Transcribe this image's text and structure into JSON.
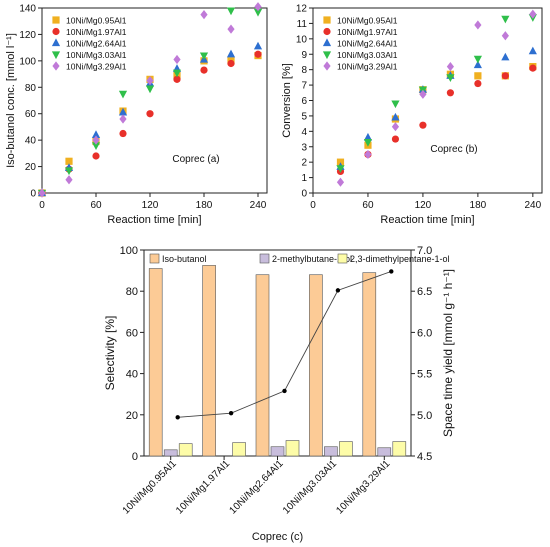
{
  "chart_data": [
    {
      "id": "a",
      "type": "scatter",
      "xlabel": "Reaction time [min]",
      "ylabel": "Iso-butanol conc. [mmol l⁻¹]",
      "annotation": "Coprec (a)",
      "xlim": [
        0,
        250
      ],
      "ylim": [
        0,
        140
      ],
      "xticks": [
        0,
        60,
        120,
        180,
        240
      ],
      "yticks": [
        0,
        20,
        40,
        60,
        80,
        100,
        120,
        140
      ],
      "legend_position": "top-left",
      "x": [
        0,
        30,
        60,
        90,
        120,
        150,
        180,
        210,
        240
      ],
      "series": [
        {
          "name": "10Ni/Mg0.95Al1",
          "marker": "square",
          "color": "#f0b020",
          "values": [
            0,
            24,
            39,
            62,
            86,
            89,
            100,
            100,
            104
          ]
        },
        {
          "name": "10Ni/Mg1.97Al1",
          "marker": "circle",
          "color": "#e8302a",
          "values": [
            0,
            18,
            28,
            45,
            60,
            86,
            93,
            98,
            105
          ]
        },
        {
          "name": "10Ni/Mg2.64Al1",
          "marker": "triangle-up",
          "color": "#2d6fd0",
          "values": [
            0,
            19,
            44,
            61,
            83,
            94,
            101,
            105,
            111
          ]
        },
        {
          "name": "10Ni/Mg3.03Al1",
          "marker": "triangle-down",
          "color": "#2fbf4a",
          "values": [
            0,
            17,
            36,
            75,
            79,
            91,
            104,
            138,
            137
          ]
        },
        {
          "name": "10Ni/Mg3.29Al1",
          "marker": "diamond",
          "color": "#c07ad8",
          "values": [
            0,
            10,
            40,
            56,
            85,
            101,
            135,
            124,
            141
          ]
        }
      ]
    },
    {
      "id": "b",
      "type": "scatter",
      "xlabel": "Reaction time [min]",
      "ylabel": "Conversion [%]",
      "annotation": "Coprec (b)",
      "xlim": [
        0,
        250
      ],
      "ylim": [
        0,
        12
      ],
      "xticks": [
        0,
        60,
        120,
        180,
        240
      ],
      "yticks": [
        0,
        1,
        2,
        3,
        4,
        5,
        6,
        7,
        8,
        9,
        10,
        11,
        12
      ],
      "legend_position": "top-left",
      "x": [
        30,
        60,
        90,
        120,
        150,
        180,
        210,
        240
      ],
      "series": [
        {
          "name": "10Ni/Mg0.95Al1",
          "marker": "square",
          "color": "#f0b020",
          "values": [
            2.0,
            3.1,
            4.8,
            6.7,
            7.7,
            7.6,
            7.6,
            8.2
          ]
        },
        {
          "name": "10Ni/Mg1.97Al1",
          "marker": "circle",
          "color": "#e8302a",
          "values": [
            1.4,
            2.5,
            3.5,
            4.4,
            6.5,
            7.1,
            7.6,
            8.1
          ]
        },
        {
          "name": "10Ni/Mg2.64Al1",
          "marker": "triangle-up",
          "color": "#2d6fd0",
          "values": [
            1.7,
            3.6,
            4.9,
            6.7,
            7.6,
            8.3,
            8.8,
            9.2
          ]
        },
        {
          "name": "10Ni/Mg3.03Al1",
          "marker": "triangle-down",
          "color": "#2fbf4a",
          "values": [
            1.6,
            3.3,
            5.8,
            6.7,
            7.5,
            8.7,
            11.3,
            11.4
          ]
        },
        {
          "name": "10Ni/Mg3.29Al1",
          "marker": "diamond",
          "color": "#c07ad8",
          "values": [
            0.7,
            2.5,
            4.3,
            6.4,
            8.2,
            10.9,
            10.2,
            11.6
          ]
        }
      ]
    },
    {
      "id": "c",
      "type": "bar",
      "xlabel": "Coprec (c)",
      "ylabel": "Selectivity [%]",
      "y2label": "Space time yield [mmol g⁻¹ h⁻¹]",
      "ylim": [
        0,
        100
      ],
      "yticks": [
        0,
        20,
        40,
        60,
        80,
        100
      ],
      "y2lim": [
        4.5,
        7.0
      ],
      "y2ticks": [
        4.5,
        5.0,
        5.5,
        6.0,
        6.5,
        7.0
      ],
      "legend_position": "top",
      "categories": [
        "10Ni/Mg0.95Al1",
        "10Ni/Mg1.97Al1",
        "10Ni/Mg2.64Al1",
        "10Ni/Mg3.03Al1",
        "10Ni/Mg3.29Al1"
      ],
      "series": [
        {
          "name": "Iso-butanol",
          "color": "#fccb96",
          "values": [
            91,
            92.5,
            88,
            88,
            89
          ]
        },
        {
          "name": "2-methylbutane-1-ol",
          "color": "#c8bddc",
          "values": [
            3,
            0,
            4.5,
            4.5,
            4
          ]
        },
        {
          "name": "2,3-dimethylpentane-1-ol",
          "color": "#fdfca8",
          "values": [
            6,
            6.5,
            7.5,
            7,
            7
          ]
        }
      ],
      "line_series": {
        "axis": "y2",
        "color": "#000000",
        "values": [
          4.97,
          5.02,
          5.29,
          6.51,
          6.74
        ]
      }
    }
  ]
}
